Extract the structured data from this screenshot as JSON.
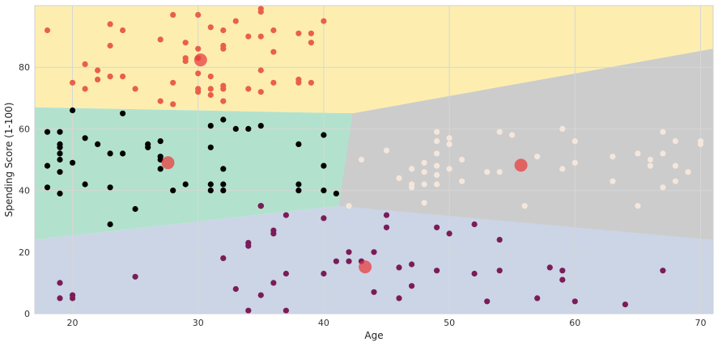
{
  "chart_data": {
    "type": "scatter",
    "xlabel": "Age",
    "ylabel": "Spending Score (1-100)",
    "xlim": [
      17,
      71
    ],
    "ylim": [
      0,
      100
    ],
    "x_ticks": [
      20,
      30,
      40,
      50,
      60,
      70
    ],
    "y_ticks": [
      0,
      20,
      40,
      60,
      80
    ],
    "grid": true,
    "region_colors": {
      "yellow": "#fdeeaf",
      "green": "#b2e2ce",
      "blue": "#cbd5e6",
      "gray": "#cccccc"
    },
    "regions": [
      {
        "color": "gray",
        "corners": [
          [
            41.2,
            0
          ],
          [
            71,
            0
          ],
          [
            71,
            100
          ],
          [
            41.2,
            100
          ]
        ]
      },
      {
        "color": "yellow",
        "corners": [
          [
            17,
            67
          ],
          [
            42.3,
            65
          ],
          [
            71,
            86
          ],
          [
            71,
            100
          ],
          [
            17,
            100
          ]
        ]
      },
      {
        "color": "green",
        "corners": [
          [
            17,
            24
          ],
          [
            41.2,
            35
          ],
          [
            42.3,
            65
          ],
          [
            17,
            67
          ]
        ]
      },
      {
        "color": "blue",
        "corners": [
          [
            17,
            0
          ],
          [
            71,
            0
          ],
          [
            71,
            24
          ],
          [
            41.2,
            35
          ],
          [
            17,
            24
          ]
        ]
      }
    ],
    "series": [
      {
        "color": "#e8604a",
        "points": [
          [
            18,
            92
          ],
          [
            20,
            75
          ],
          [
            21,
            73
          ],
          [
            21,
            81
          ],
          [
            22,
            79
          ],
          [
            22,
            76
          ],
          [
            23,
            94
          ],
          [
            23,
            87
          ],
          [
            23,
            77
          ],
          [
            24,
            92
          ],
          [
            24,
            77
          ],
          [
            25,
            73
          ],
          [
            27,
            89
          ],
          [
            27,
            69
          ],
          [
            28,
            97
          ],
          [
            28,
            75
          ],
          [
            28,
            68
          ],
          [
            29,
            88
          ],
          [
            29,
            83
          ],
          [
            29,
            82
          ],
          [
            30,
            97
          ],
          [
            30,
            86
          ],
          [
            30,
            78
          ],
          [
            30,
            73
          ],
          [
            30,
            72
          ],
          [
            30,
            83
          ],
          [
            31,
            93
          ],
          [
            31,
            77
          ],
          [
            31,
            73
          ],
          [
            31,
            71
          ],
          [
            32,
            92
          ],
          [
            32,
            87
          ],
          [
            32,
            86
          ],
          [
            32,
            74
          ],
          [
            32,
            73
          ],
          [
            32,
            69
          ],
          [
            33,
            95
          ],
          [
            34,
            90
          ],
          [
            34,
            73
          ],
          [
            35,
            99
          ],
          [
            35,
            98
          ],
          [
            35,
            90
          ],
          [
            35,
            79
          ],
          [
            35,
            72
          ],
          [
            36,
            92
          ],
          [
            36,
            85
          ],
          [
            36,
            75
          ],
          [
            38,
            91
          ],
          [
            38,
            76
          ],
          [
            38,
            75
          ],
          [
            39,
            91
          ],
          [
            39,
            88
          ],
          [
            39,
            75
          ],
          [
            40,
            95
          ]
        ]
      },
      {
        "color": "#000000",
        "points": [
          [
            18,
            59
          ],
          [
            18,
            48
          ],
          [
            18,
            41
          ],
          [
            19,
            59
          ],
          [
            19,
            55
          ],
          [
            19,
            54
          ],
          [
            19,
            52
          ],
          [
            19,
            50
          ],
          [
            19,
            46
          ],
          [
            19,
            39
          ],
          [
            20,
            66
          ],
          [
            20,
            49
          ],
          [
            21,
            57
          ],
          [
            21,
            42
          ],
          [
            22,
            55
          ],
          [
            23,
            52
          ],
          [
            23,
            41
          ],
          [
            23,
            29
          ],
          [
            24,
            65
          ],
          [
            24,
            52
          ],
          [
            25,
            34
          ],
          [
            26,
            55
          ],
          [
            26,
            54
          ],
          [
            27,
            56
          ],
          [
            27,
            51
          ],
          [
            27,
            50
          ],
          [
            27,
            47
          ],
          [
            28,
            40
          ],
          [
            29,
            42
          ],
          [
            31,
            61
          ],
          [
            31,
            54
          ],
          [
            31,
            42
          ],
          [
            31,
            40
          ],
          [
            32,
            63
          ],
          [
            32,
            47
          ],
          [
            32,
            42
          ],
          [
            32,
            40
          ],
          [
            33,
            60
          ],
          [
            34,
            60
          ],
          [
            35,
            61
          ],
          [
            35,
            35
          ],
          [
            38,
            55
          ],
          [
            38,
            42
          ],
          [
            38,
            40
          ],
          [
            40,
            58
          ],
          [
            40,
            48
          ],
          [
            40,
            40
          ],
          [
            41,
            39
          ]
        ]
      },
      {
        "color": "#f5e6dc",
        "points": [
          [
            42,
            35
          ],
          [
            43,
            50
          ],
          [
            45,
            53
          ],
          [
            46,
            44
          ],
          [
            47,
            47
          ],
          [
            47,
            42
          ],
          [
            47,
            41
          ],
          [
            48,
            49
          ],
          [
            48,
            46
          ],
          [
            48,
            42
          ],
          [
            48,
            36
          ],
          [
            49,
            59
          ],
          [
            49,
            56
          ],
          [
            49,
            52
          ],
          [
            49,
            48
          ],
          [
            49,
            45
          ],
          [
            49,
            42
          ],
          [
            50,
            57
          ],
          [
            50,
            55
          ],
          [
            50,
            47
          ],
          [
            51,
            50
          ],
          [
            51,
            43
          ],
          [
            53,
            46
          ],
          [
            54,
            59
          ],
          [
            54,
            46
          ],
          [
            55,
            58
          ],
          [
            56,
            35
          ],
          [
            57,
            51
          ],
          [
            59,
            60
          ],
          [
            59,
            47
          ],
          [
            60,
            56
          ],
          [
            60,
            49
          ],
          [
            63,
            51
          ],
          [
            63,
            43
          ],
          [
            65,
            52
          ],
          [
            65,
            35
          ],
          [
            66,
            50
          ],
          [
            66,
            48
          ],
          [
            67,
            59
          ],
          [
            67,
            52
          ],
          [
            67,
            41
          ],
          [
            68,
            56
          ],
          [
            68,
            48
          ],
          [
            68,
            43
          ],
          [
            69,
            46
          ],
          [
            70,
            56
          ],
          [
            70,
            55
          ]
        ]
      },
      {
        "color": "#7b1c58",
        "points": [
          [
            19,
            10
          ],
          [
            19,
            5
          ],
          [
            20,
            6
          ],
          [
            20,
            5
          ],
          [
            25,
            12
          ],
          [
            32,
            18
          ],
          [
            33,
            8
          ],
          [
            34,
            23
          ],
          [
            34,
            22
          ],
          [
            34,
            1
          ],
          [
            35,
            35
          ],
          [
            35,
            6
          ],
          [
            36,
            27
          ],
          [
            36,
            26
          ],
          [
            36,
            10
          ],
          [
            37,
            32
          ],
          [
            37,
            13
          ],
          [
            37,
            1
          ],
          [
            40,
            31
          ],
          [
            40,
            13
          ],
          [
            41,
            17
          ],
          [
            42,
            20
          ],
          [
            42,
            17
          ],
          [
            43,
            17
          ],
          [
            44,
            20
          ],
          [
            44,
            7
          ],
          [
            45,
            32
          ],
          [
            45,
            28
          ],
          [
            46,
            15
          ],
          [
            46,
            5
          ],
          [
            47,
            16
          ],
          [
            47,
            9
          ],
          [
            49,
            28
          ],
          [
            49,
            14
          ],
          [
            50,
            26
          ],
          [
            52,
            29
          ],
          [
            52,
            13
          ],
          [
            53,
            4
          ],
          [
            54,
            24
          ],
          [
            54,
            14
          ],
          [
            57,
            5
          ],
          [
            58,
            15
          ],
          [
            59,
            14
          ],
          [
            59,
            11
          ],
          [
            60,
            4
          ],
          [
            64,
            3
          ],
          [
            67,
            14
          ]
        ]
      }
    ],
    "centroids": {
      "color": "#e8393a",
      "points": [
        [
          30.2,
          82.4
        ],
        [
          27.6,
          49.0
        ],
        [
          43.3,
          15.2
        ],
        [
          55.7,
          48.2
        ]
      ]
    }
  }
}
